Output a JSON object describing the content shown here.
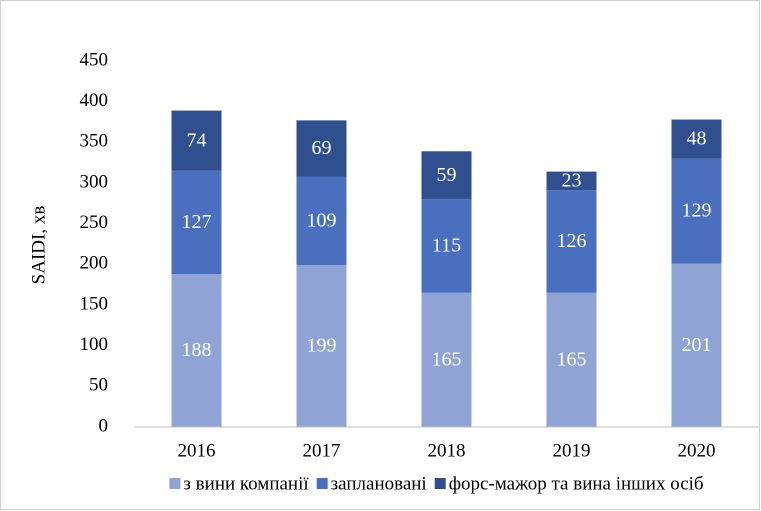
{
  "chart_data": {
    "type": "stacked_bar",
    "y_label": "SAIDI, хв",
    "categories": [
      "2016",
      "2017",
      "2018",
      "2019",
      "2020"
    ],
    "series": [
      {
        "name": "з вини компанії",
        "color": "#8fa4d5",
        "values": [
          188,
          199,
          165,
          165,
          201
        ]
      },
      {
        "name": "заплановані",
        "color": "#4a6fbf",
        "values": [
          127,
          109,
          115,
          126,
          129
        ]
      },
      {
        "name": "форс-мажор та вина інших осіб",
        "color": "#2f4f8f",
        "values": [
          74,
          69,
          59,
          23,
          48
        ]
      }
    ],
    "ylim": [
      0,
      450
    ],
    "yticks": [
      0,
      50,
      100,
      150,
      200,
      250,
      300,
      350,
      400,
      450
    ],
    "grid": false,
    "legend": "bottom"
  }
}
